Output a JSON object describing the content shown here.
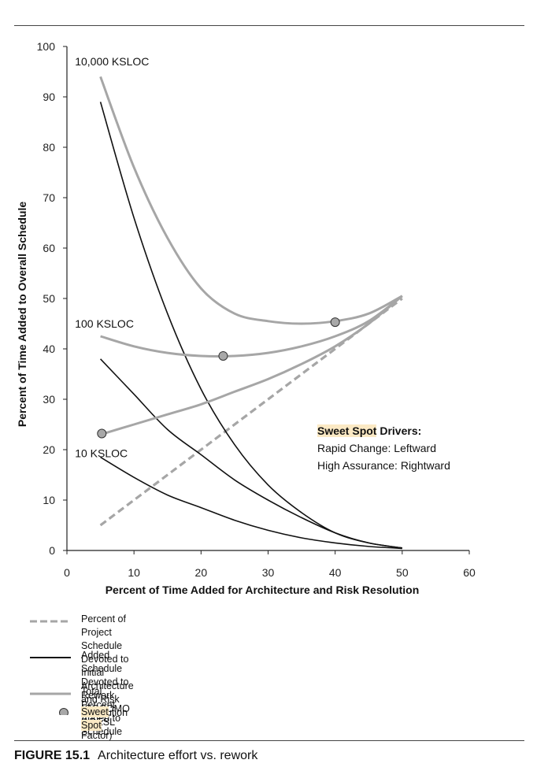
{
  "chart_data": {
    "type": "line",
    "xlabel": "Percent of Time Added for Architecture and Risk Resolution",
    "ylabel": "Percent of Time Added to Overall Schedule",
    "xlim": [
      0,
      60
    ],
    "ylim": [
      0,
      100
    ],
    "xticks": [
      0,
      10,
      20,
      30,
      40,
      50,
      60
    ],
    "yticks": [
      0,
      10,
      20,
      30,
      40,
      50,
      60,
      70,
      80,
      90,
      100
    ],
    "grid": false,
    "legend_position": "bottom",
    "colors": {
      "gray": "#a6a6a6",
      "black": "#111111",
      "sweet_spot_fill": "#a8a8a8",
      "highlight": "#fbe9c4"
    },
    "series": [
      {
        "style": "dashed-gray",
        "x": [
          5,
          50
        ],
        "y": [
          5,
          50
        ]
      },
      {
        "style": "black",
        "group": "10,000 KSLOC",
        "x": [
          5,
          10,
          15,
          20,
          25,
          30,
          35,
          40,
          45,
          50
        ],
        "y": [
          89,
          66,
          47,
          32,
          21,
          13,
          7.5,
          3.5,
          1.5,
          0.5
        ]
      },
      {
        "style": "black",
        "group": "100 KSLOC",
        "x": [
          5,
          10,
          15,
          20,
          25,
          30,
          35,
          40,
          45,
          50
        ],
        "y": [
          38,
          31,
          24,
          19,
          14,
          10,
          6.5,
          3.5,
          1.5,
          0.5
        ]
      },
      {
        "style": "black",
        "group": "10 KSLOC",
        "x": [
          5,
          10,
          15,
          20,
          25,
          30,
          35,
          40,
          45,
          50
        ],
        "y": [
          18.5,
          14.5,
          11,
          8.5,
          6,
          4,
          2.5,
          1.5,
          0.8,
          0.4
        ]
      },
      {
        "style": "gray",
        "group": "10,000 KSLOC",
        "x": [
          5,
          10,
          15,
          20,
          25,
          30,
          35,
          40,
          45,
          50
        ],
        "y": [
          94,
          76,
          62,
          52,
          47,
          45.5,
          45,
          45.5,
          47,
          50.5
        ]
      },
      {
        "style": "gray",
        "group": "100 KSLOC",
        "x": [
          5,
          10,
          15,
          20,
          25,
          30,
          35,
          40,
          45,
          50
        ],
        "y": [
          42.5,
          40.5,
          39.2,
          38.6,
          38.6,
          39.2,
          40.5,
          42.5,
          45.5,
          50.5
        ]
      },
      {
        "style": "gray",
        "group": "10 KSLOC",
        "x": [
          5,
          10,
          15,
          20,
          25,
          30,
          35,
          40,
          45,
          50
        ],
        "y": [
          23,
          25,
          27,
          29,
          31.5,
          34,
          37,
          40.5,
          45,
          50.5
        ]
      }
    ],
    "sweet_spots": [
      {
        "x": 5.2,
        "y": 23.2
      },
      {
        "x": 23.3,
        "y": 38.6
      },
      {
        "x": 40,
        "y": 45.3
      }
    ],
    "curve_labels": [
      {
        "text": "10,000 KSLOC",
        "x": 1.2,
        "y": 97
      },
      {
        "text": "100 KSLOC",
        "x": 1.2,
        "y": 45
      },
      {
        "text": "10 KSLOC",
        "x": 1.2,
        "y": 19.3
      }
    ]
  },
  "annotation": {
    "title_highlight": "Sweet Spot",
    "title_rest": " Drivers:",
    "line1": "Rapid Change: Leftward",
    "line2": "High Assurance: Rightward"
  },
  "legend": {
    "dashed_line1": "Percent of Project Schedule Devoted to",
    "dashed_line2": "Initial Architecture and Risk Resolution",
    "black_line1": "Added Schedule Devoted to Rework",
    "black_line2": "(COCOMO II RESL Factor)",
    "gray": "Total Percent Added to Schedule",
    "sweet_spot": "Sweet Spot"
  },
  "caption": {
    "figure": "FIGURE 15.1",
    "text": "Architecture effort vs. rework"
  }
}
